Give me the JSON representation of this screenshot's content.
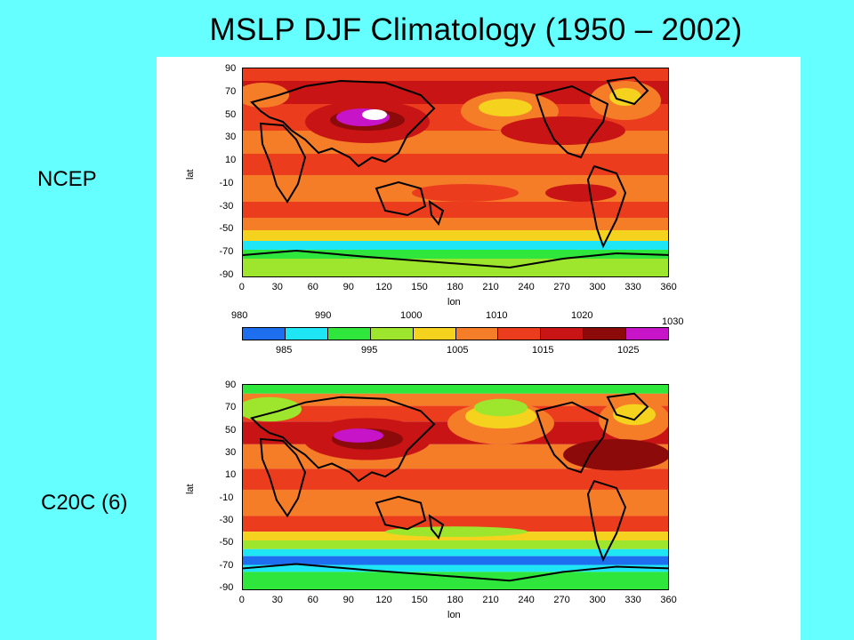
{
  "slide": {
    "title": "MSLP DJF Climatology (1950 – 2002)"
  },
  "panels": [
    {
      "label": "NCEP",
      "xlabel": "lon",
      "ylabel": "lat"
    },
    {
      "label": "C20C (6)",
      "xlabel": "lon",
      "ylabel": "lat"
    }
  ],
  "axes": {
    "lat_ticks": [
      "90",
      "70",
      "50",
      "30",
      "10",
      "-10",
      "-30",
      "-50",
      "-70",
      "-90"
    ],
    "lon_ticks": [
      "0",
      "30",
      "60",
      "90",
      "120",
      "150",
      "180",
      "210",
      "240",
      "270",
      "300",
      "330",
      "360"
    ]
  },
  "colorbar": {
    "top_labels": [
      "980",
      "990",
      "1000",
      "1010",
      "1020",
      "1030"
    ],
    "bottom_labels": [
      "985",
      "995",
      "1005",
      "1015",
      "1025"
    ],
    "colors": [
      "#1e6ef0",
      "#1ee6f5",
      "#2ee63c",
      "#9ee62e",
      "#f5d21e",
      "#f57d28",
      "#eb3c1e",
      "#c81414",
      "#8c0a0a",
      "#c814c8"
    ]
  },
  "map_colors": {
    "band_blue": "#1e6ef0",
    "cyan": "#1ee6f5",
    "green": "#2ee63c",
    "lime": "#9ee62e",
    "yellow": "#f5d21e",
    "orange": "#f57d28",
    "red": "#eb3c1e",
    "darkred": "#c81414",
    "maroon": "#8c0a0a",
    "magenta": "#c814c8",
    "white": "#ffffff"
  }
}
